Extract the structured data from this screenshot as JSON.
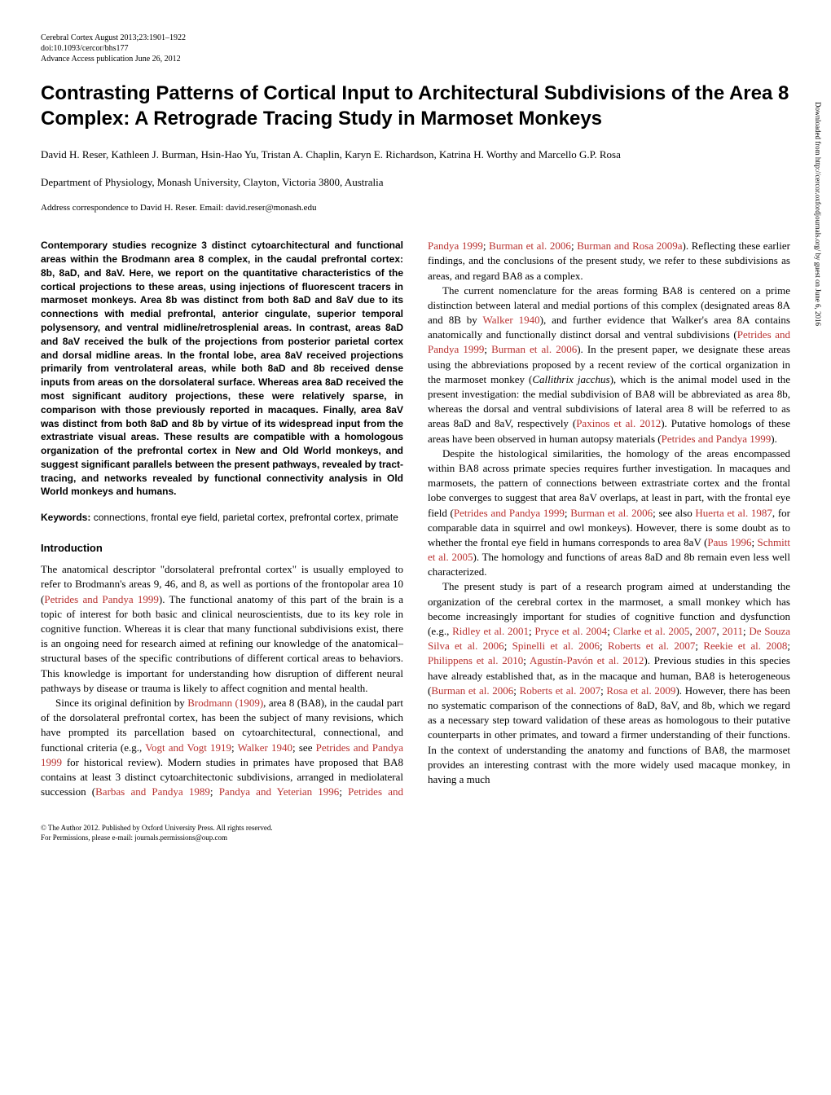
{
  "header": {
    "journal": "Cerebral Cortex August 2013;23:1901–1922",
    "doi": "doi:10.1093/cercor/bhs177",
    "access": "Advance Access publication June 26, 2012"
  },
  "title": "Contrasting Patterns of Cortical Input to Architectural Subdivisions of the Area 8 Complex: A Retrograde Tracing Study in Marmoset Monkeys",
  "authors": "David H. Reser, Kathleen J. Burman, Hsin-Hao Yu, Tristan A. Chaplin, Karyn E. Richardson, Katrina H. Worthy and Marcello G.P. Rosa",
  "affiliation": "Department of Physiology, Monash University, Clayton, Victoria 3800, Australia",
  "correspondence": "Address correspondence to David H. Reser. Email: david.reser@monash.edu",
  "abstract": "Contemporary studies recognize 3 distinct cytoarchitectural and functional areas within the Brodmann area 8 complex, in the caudal prefrontal cortex: 8b, 8aD, and 8aV. Here, we report on the quantitative characteristics of the cortical projections to these areas, using injections of fluorescent tracers in marmoset monkeys. Area 8b was distinct from both 8aD and 8aV due to its connections with medial prefrontal, anterior cingulate, superior temporal polysensory, and ventral midline/retrosplenial areas. In contrast, areas 8aD and 8aV received the bulk of the projections from posterior parietal cortex and dorsal midline areas. In the frontal lobe, area 8aV received projections primarily from ventrolateral areas, while both 8aD and 8b received dense inputs from areas on the dorsolateral surface. Whereas area 8aD received the most significant auditory projections, these were relatively sparse, in comparison with those previously reported in macaques. Finally, area 8aV was distinct from both 8aD and 8b by virtue of its widespread input from the extrastriate visual areas. These results are compatible with a homologous organization of the prefrontal cortex in New and Old World monkeys, and suggest significant parallels between the present pathways, revealed by tract-tracing, and networks revealed by functional connectivity analysis in Old World monkeys and humans.",
  "keywords_label": "Keywords:",
  "keywords": " connections, frontal eye field, parietal cortex, prefrontal cortex, primate",
  "intro_heading": "Introduction",
  "para1_start": "The anatomical descriptor \"dorsolateral prefrontal cortex\" is usually employed to refer to Brodmann's areas 9, 46, and 8, as well as portions of the frontopolar area 10 (",
  "para1_ref1": "Petrides and Pandya 1999",
  "para1_end": "). The functional anatomy of this part of the brain is a topic of interest for both basic and clinical neuroscientists, due to its key role in cognitive function. Whereas it is clear that many functional subdivisions exist, there is an ongoing need for research aimed at refining our knowledge of the anatomical–structural bases of the specific contributions of different cortical areas to behaviors. This knowledge is important for understanding how disruption of different neural pathways by disease or trauma is likely to affect cognition and mental health.",
  "para2_start": "Since its original definition by ",
  "para2_ref1": "Brodmann (1909)",
  "para2_mid1": ", area 8 (BA8), in the caudal part of the dorsolateral prefrontal cortex, has been the subject of many revisions, which have prompted its parcellation based on cytoarchitectural, connectional, and functional criteria (e.g., ",
  "para2_ref2": "Vogt and Vogt 1919",
  "para2_mid2": "; ",
  "para2_ref3": "Walker 1940",
  "para2_mid3": "; see ",
  "para2_ref4": "Petrides and Pandya 1999",
  "para2_mid4": " for historical review). Modern studies in primates have proposed that BA8 contains at least 3 distinct cytoarchitectonic subdivisions, arranged in mediolateral succession (",
  "para2_ref5": "Barbas and Pandya 1989",
  "para2_mid5": "; ",
  "para2_ref6": "Pandya and Yeterian 1996",
  "para2_mid6": "; ",
  "para2_ref7": "Petrides and Pandya 1999",
  "para2_mid7": "; ",
  "para2_ref8": "Burman et al. 2006",
  "para2_mid8": "; ",
  "para2_ref9": "Burman and Rosa 2009a",
  "para2_end": "). Reflecting these earlier findings, and the conclusions of the present study, we refer to these subdivisions as areas, and regard BA8 as a complex.",
  "para3_start": "The current nomenclature for the areas forming BA8 is centered on a prime distinction between lateral and medial portions of this complex (designated areas 8A and 8B by ",
  "para3_ref1": "Walker 1940",
  "para3_mid1": "), and further evidence that Walker's area 8A contains anatomically and functionally distinct dorsal and ventral subdivisions (",
  "para3_ref2": "Petrides and Pandya 1999",
  "para3_mid2": "; ",
  "para3_ref3": "Burman et al. 2006",
  "para3_mid3": "). In the present paper, we designate these areas using the abbreviations proposed by a recent review of the cortical organization in the marmoset monkey (",
  "para3_italic": "Callithrix jacchus",
  "para3_mid4": "), which is the animal model used in the present investigation: the medial subdivision of BA8 will be abbreviated as area 8b, whereas the dorsal and ventral subdivisions of lateral area 8 will be referred to as areas 8aD and 8aV, respectively (",
  "para3_ref4": "Paxinos et al. 2012",
  "para3_mid5": "). Putative homologs of these areas have been observed in human autopsy materials (",
  "para3_ref5": "Petrides and Pandya 1999",
  "para3_end": ").",
  "para4_start": "Despite the histological similarities, the homology of the areas encompassed within BA8 across primate species requires further investigation. In macaques and marmosets, the pattern of connections between extrastriate cortex and the frontal lobe converges to suggest that area 8aV overlaps, at least in part, with the frontal eye field (",
  "para4_ref1": "Petrides and Pandya 1999",
  "para4_mid1": "; ",
  "para4_ref2": "Burman et al. 2006",
  "para4_mid2": "; see also ",
  "para4_ref3": "Huerta et al. 1987",
  "para4_mid3": ", for comparable data in squirrel and owl monkeys). However, there is some doubt as to whether the frontal eye field in humans corresponds to area 8aV (",
  "para4_ref4": "Paus 1996",
  "para4_mid4": "; ",
  "para4_ref5": "Schmitt et al. 2005",
  "para4_end": "). The homology and functions of areas 8aD and 8b remain even less well characterized.",
  "para5_start": "The present study is part of a research program aimed at understanding the organization of the cerebral cortex in the marmoset, a small monkey which has become increasingly important for studies of cognitive function and dysfunction (e.g., ",
  "para5_ref1": "Ridley et al. 2001",
  "para5_mid1": "; ",
  "para5_ref2": "Pryce et al. 2004",
  "para5_mid2": "; ",
  "para5_ref3": "Clarke et al. 2005",
  "para5_mid3": ", ",
  "para5_ref4": "2007",
  "para5_mid4": ", ",
  "para5_ref5": "2011",
  "para5_mid5": "; ",
  "para5_ref6": "De Souza Silva et al. 2006",
  "para5_mid6": "; ",
  "para5_ref7": "Spinelli et al. 2006",
  "para5_mid7": "; ",
  "para5_ref8": "Roberts et al. 2007",
  "para5_mid8": "; ",
  "para5_ref9": "Reekie et al. 2008",
  "para5_mid9": "; ",
  "para5_ref10": "Philippens et al. 2010",
  "para5_mid10": "; ",
  "para5_ref11": "Agustín-Pavón et al. 2012",
  "para5_mid11": "). Previous studies in this species have already established that, as in the macaque and human, BA8 is heterogeneous (",
  "para5_ref12": "Burman et al. 2006",
  "para5_mid12": "; ",
  "para5_ref13": "Roberts et al. 2007",
  "para5_mid13": "; ",
  "para5_ref14": "Rosa et al. 2009",
  "para5_end": "). However, there has been no systematic comparison of the connections of 8aD, 8aV, and 8b, which we regard as a necessary step toward validation of these areas as homologous to their putative counterparts in other primates, and toward a firmer understanding of their functions. In the context of understanding the anatomy and functions of BA8, the marmoset provides an interesting contrast with the more widely used macaque monkey, in having a much",
  "footer": {
    "copyright": "© The Author 2012. Published by Oxford University Press. All rights reserved.",
    "permissions": "For Permissions, please e-mail: journals.permissions@oup.com"
  },
  "sidebar": "Downloaded from http://cercor.oxfordjournals.org/ by guest on June 6, 2016"
}
